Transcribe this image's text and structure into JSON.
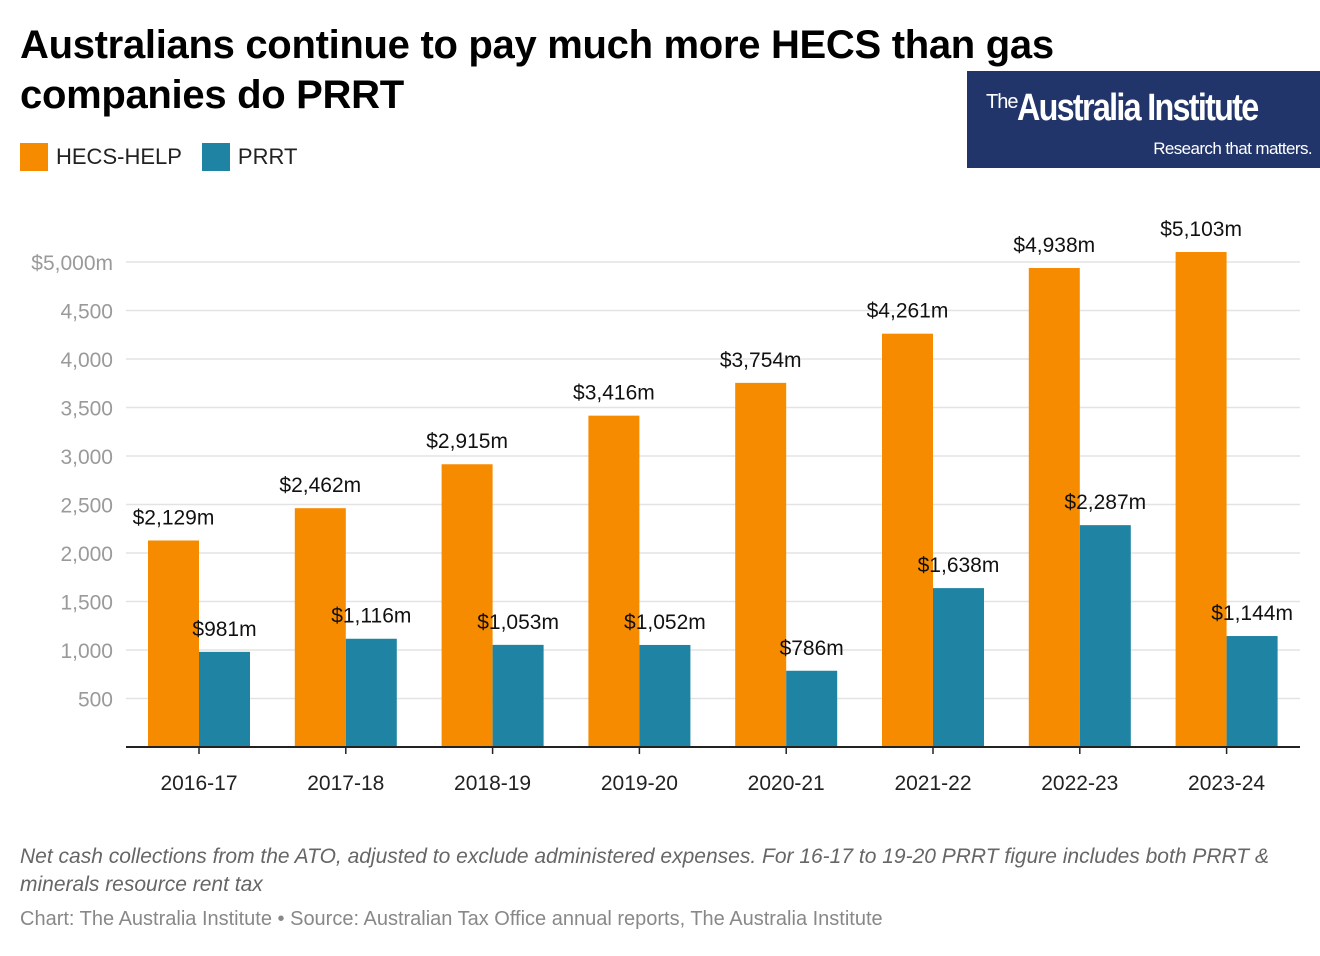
{
  "title": "Australians continue to pay much more HECS than gas companies do PRRT",
  "logo": {
    "the": "The",
    "name": "Australia Institute",
    "tagline": "Research that matters."
  },
  "colors": {
    "hecs": "#f78b00",
    "prrt": "#1f83a3",
    "logo_bg": "#21356a"
  },
  "chart_data": {
    "type": "bar",
    "title": "Australians continue to pay much more HECS than gas companies do PRRT",
    "categories": [
      "2016-17",
      "2017-18",
      "2018-19",
      "2019-20",
      "2020-21",
      "2021-22",
      "2022-23",
      "2023-24"
    ],
    "series": [
      {
        "name": "HECS-HELP",
        "values": [
          2129,
          2462,
          2915,
          3416,
          3754,
          4261,
          4938,
          5103
        ],
        "labels": [
          "$2,129m",
          "$2,462m",
          "$2,915m",
          "$3,416m",
          "$3,754m",
          "$4,261m",
          "$4,938m",
          "$5,103m"
        ]
      },
      {
        "name": "PRRT",
        "values": [
          981,
          1116,
          1053,
          1052,
          786,
          1638,
          2287,
          1144
        ],
        "labels": [
          "$981m",
          "$1,116m",
          "$1,053m",
          "$1,052m",
          "$786m",
          "$1,638m",
          "$2,287m",
          "$1,144m"
        ]
      }
    ],
    "yticks": [
      500,
      1000,
      1500,
      2000,
      2500,
      3000,
      3500,
      4000,
      4500,
      5000
    ],
    "ytick_labels": [
      "500",
      "1,000",
      "1,500",
      "2,000",
      "2,500",
      "3,000",
      "3,500",
      "4,000",
      "4,500",
      "$5,000m"
    ],
    "ylim": [
      0,
      5000
    ],
    "grid": true,
    "legend": "top-left"
  },
  "note": "Net cash collections from the ATO, adjusted to exclude administered expenses. For 16-17 to 19-20 PRRT figure includes both PRRT & minerals resource rent tax",
  "source": "Chart: The Australia Institute  • Source: Australian Tax Office annual reports, The Australia Institute"
}
